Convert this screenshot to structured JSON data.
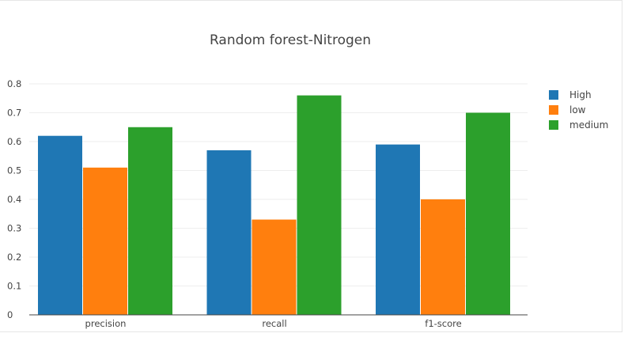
{
  "chart_data": {
    "type": "bar",
    "title": "Random forest-Nitrogen",
    "xlabel": "",
    "ylabel": "",
    "categories": [
      "precision",
      "recall",
      "f1-score"
    ],
    "series": [
      {
        "name": "High",
        "color": "#1f77b4",
        "values": [
          0.62,
          0.57,
          0.59
        ]
      },
      {
        "name": "low",
        "color": "#ff7f0e",
        "values": [
          0.51,
          0.33,
          0.4
        ]
      },
      {
        "name": "medium",
        "color": "#2ca02c",
        "values": [
          0.65,
          0.76,
          0.7
        ]
      }
    ],
    "ylim": [
      0,
      0.8
    ],
    "yticks": [
      "0",
      "0.1",
      "0.2",
      "0.3",
      "0.4",
      "0.5",
      "0.6",
      "0.7",
      "0.8"
    ],
    "grid": true,
    "legend_position": "top-right"
  }
}
